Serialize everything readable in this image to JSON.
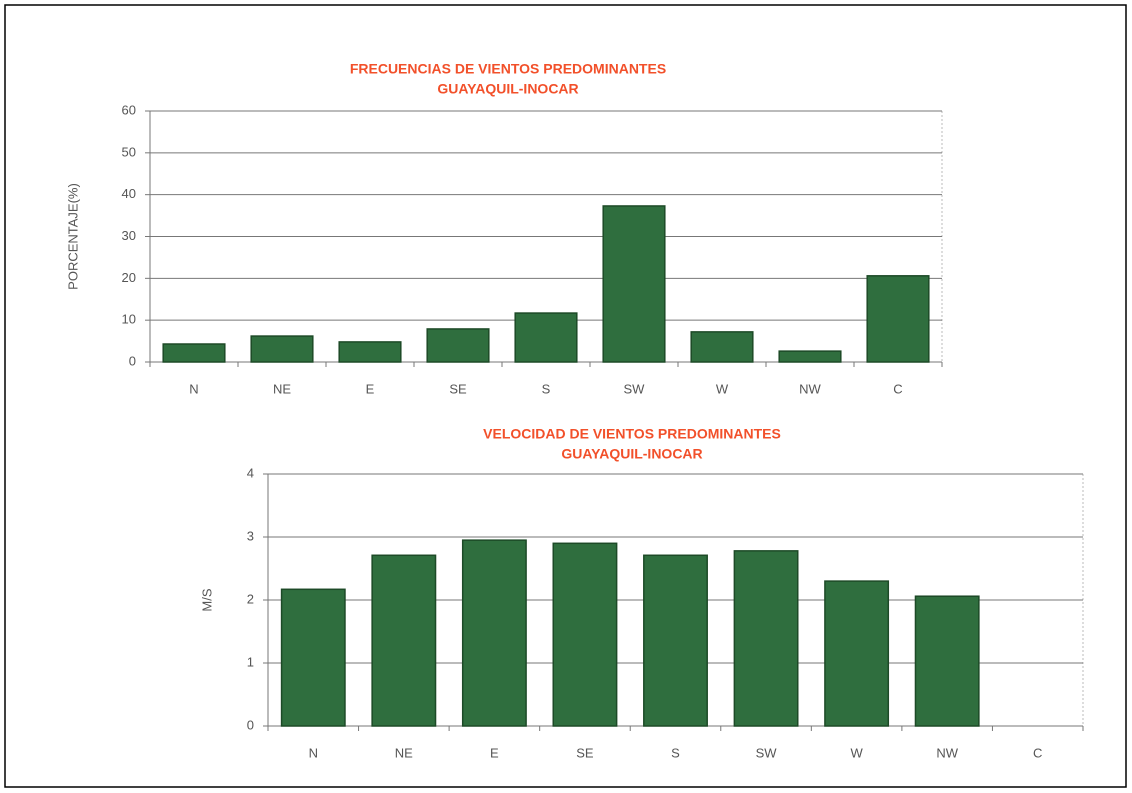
{
  "chart_data": [
    {
      "type": "bar",
      "title": "FRECUENCIAS DE VIENTOS PREDOMINANTES",
      "subtitle": "GUAYAQUIL-INOCAR",
      "ylabel": "PORCENTAJE(%)",
      "categories": [
        "N",
        "NE",
        "E",
        "SE",
        "S",
        "SW",
        "W",
        "NW",
        "C"
      ],
      "values": [
        4.3,
        6.2,
        4.8,
        7.9,
        11.7,
        37.3,
        7.2,
        2.6,
        20.6
      ],
      "color": "#2f6e3e",
      "ylim": [
        0,
        60
      ],
      "yticks": [
        0,
        10,
        20,
        30,
        40,
        50,
        60
      ],
      "grid": true
    },
    {
      "type": "bar",
      "title": "VELOCIDAD DE VIENTOS PREDOMINANTES",
      "subtitle": "GUAYAQUIL-INOCAR",
      "ylabel": "M/S",
      "categories": [
        "N",
        "NE",
        "E",
        "SE",
        "S",
        "SW",
        "W",
        "NW",
        "C"
      ],
      "values": [
        2.17,
        2.71,
        2.95,
        2.9,
        2.71,
        2.78,
        2.3,
        2.06,
        null
      ],
      "color": "#2f6e3e",
      "ylim": [
        0,
        4
      ],
      "yticks": [
        0,
        1,
        2,
        3,
        4
      ],
      "grid": true
    }
  ]
}
